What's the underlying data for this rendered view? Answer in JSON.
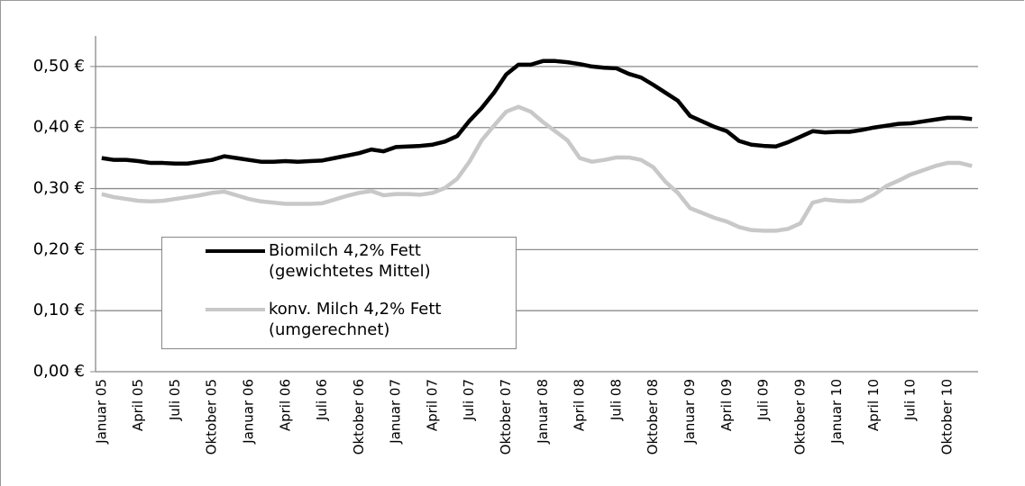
{
  "chart_data": {
    "type": "line",
    "categories": [
      "Januar 05",
      null,
      null,
      "April 05",
      null,
      null,
      "Juli 05",
      null,
      null,
      "Oktober 05",
      null,
      null,
      "Januar 06",
      null,
      null,
      "April 06",
      null,
      null,
      "Juli 06",
      null,
      null,
      "Oktober 06",
      null,
      null,
      "Januar 07",
      null,
      null,
      "April 07",
      null,
      null,
      "Juli 07",
      null,
      null,
      "Oktober 07",
      null,
      null,
      "Januar 08",
      null,
      null,
      "April 08",
      null,
      null,
      "Juli 08",
      null,
      null,
      "Oktober 08",
      null,
      null,
      "Januar 09",
      null,
      null,
      "April 09",
      null,
      null,
      "Juli 09",
      null,
      null,
      "Oktober 09",
      null,
      null,
      "Januar 10",
      null,
      null,
      "April 10",
      null,
      null,
      "Juli 10",
      null,
      null,
      "Oktober 10",
      null,
      null
    ],
    "series": [
      {
        "name": "Biomilch 4,2% Fett (gewichtetes Mittel)",
        "color": "#000000",
        "values": [
          0.35,
          0.347,
          0.347,
          0.345,
          0.342,
          0.342,
          0.341,
          0.341,
          0.344,
          0.347,
          0.353,
          0.35,
          0.347,
          0.344,
          0.344,
          0.345,
          0.344,
          0.345,
          0.346,
          0.35,
          0.354,
          0.358,
          0.364,
          0.361,
          0.368,
          0.369,
          0.37,
          0.372,
          0.377,
          0.386,
          0.411,
          0.432,
          0.457,
          0.487,
          0.503,
          0.503,
          0.509,
          0.509,
          0.507,
          0.504,
          0.5,
          0.498,
          0.497,
          0.488,
          0.482,
          0.47,
          0.457,
          0.444,
          0.419,
          0.41,
          0.401,
          0.394,
          0.378,
          0.372,
          0.37,
          0.369,
          0.376,
          0.385,
          0.394,
          0.392,
          0.393,
          0.393,
          0.396,
          0.4,
          0.403,
          0.406,
          0.407,
          0.41,
          0.413,
          0.416,
          0.416,
          0.414
        ]
      },
      {
        "name": "konv. Milch 4,2% Fett (umgerechnet)",
        "color": "#c8c8c8",
        "values": [
          0.291,
          0.286,
          0.283,
          0.28,
          0.279,
          0.28,
          0.283,
          0.286,
          0.289,
          0.293,
          0.295,
          0.289,
          0.283,
          0.279,
          0.277,
          0.275,
          0.275,
          0.275,
          0.276,
          0.282,
          0.288,
          0.293,
          0.296,
          0.289,
          0.291,
          0.291,
          0.29,
          0.293,
          0.301,
          0.316,
          0.344,
          0.379,
          0.403,
          0.426,
          0.434,
          0.426,
          0.409,
          0.394,
          0.379,
          0.35,
          0.344,
          0.347,
          0.351,
          0.351,
          0.347,
          0.335,
          0.311,
          0.293,
          0.268,
          0.26,
          0.252,
          0.246,
          0.237,
          0.232,
          0.231,
          0.231,
          0.234,
          0.243,
          0.277,
          0.282,
          0.28,
          0.279,
          0.28,
          0.29,
          0.304,
          0.313,
          0.323,
          0.33,
          0.337,
          0.342,
          0.342,
          0.337
        ]
      }
    ],
    "ylim": [
      0,
      0.55
    ],
    "yticks": [
      {
        "value": 0,
        "label": "0,00 €"
      },
      {
        "value": 0.1,
        "label": "0,10 €"
      },
      {
        "value": 0.2,
        "label": "0,20 €"
      },
      {
        "value": 0.3,
        "label": "0,30 €"
      },
      {
        "value": 0.4,
        "label": "0,40 €"
      },
      {
        "value": 0.5,
        "label": "0,50 €"
      }
    ],
    "grid": true
  }
}
